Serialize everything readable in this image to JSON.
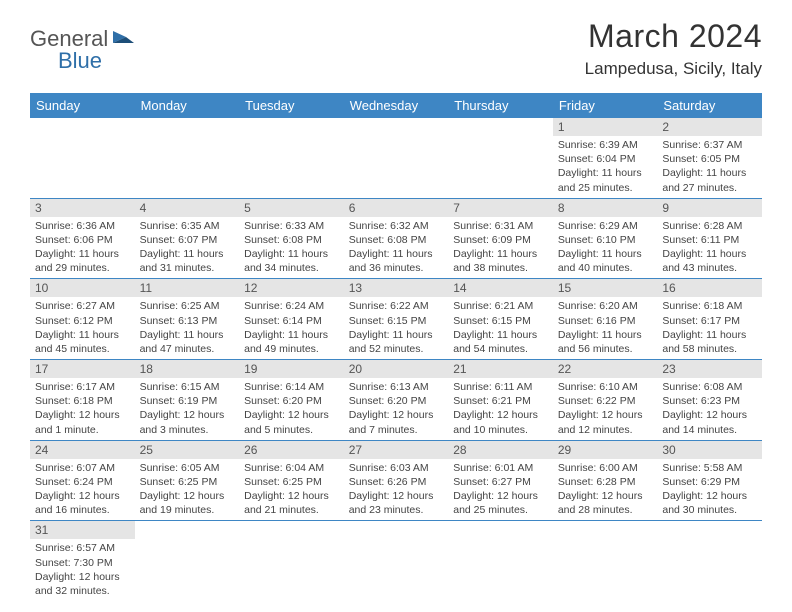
{
  "logo": {
    "word1": "General",
    "word2": "Blue"
  },
  "title": "March 2024",
  "location": "Lampedusa, Sicily, Italy",
  "colors": {
    "header_bg": "#3e86c4",
    "header_text": "#ffffff",
    "daynum_bg": "#e5e5e5",
    "row_border": "#3e86c4",
    "logo_blue": "#2f6fa8"
  },
  "weekdays": [
    "Sunday",
    "Monday",
    "Tuesday",
    "Wednesday",
    "Thursday",
    "Friday",
    "Saturday"
  ],
  "weeks": [
    [
      null,
      null,
      null,
      null,
      null,
      {
        "n": "1",
        "sr": "6:39 AM",
        "ss": "6:04 PM",
        "dl": "11 hours and 25 minutes."
      },
      {
        "n": "2",
        "sr": "6:37 AM",
        "ss": "6:05 PM",
        "dl": "11 hours and 27 minutes."
      }
    ],
    [
      {
        "n": "3",
        "sr": "6:36 AM",
        "ss": "6:06 PM",
        "dl": "11 hours and 29 minutes."
      },
      {
        "n": "4",
        "sr": "6:35 AM",
        "ss": "6:07 PM",
        "dl": "11 hours and 31 minutes."
      },
      {
        "n": "5",
        "sr": "6:33 AM",
        "ss": "6:08 PM",
        "dl": "11 hours and 34 minutes."
      },
      {
        "n": "6",
        "sr": "6:32 AM",
        "ss": "6:08 PM",
        "dl": "11 hours and 36 minutes."
      },
      {
        "n": "7",
        "sr": "6:31 AM",
        "ss": "6:09 PM",
        "dl": "11 hours and 38 minutes."
      },
      {
        "n": "8",
        "sr": "6:29 AM",
        "ss": "6:10 PM",
        "dl": "11 hours and 40 minutes."
      },
      {
        "n": "9",
        "sr": "6:28 AM",
        "ss": "6:11 PM",
        "dl": "11 hours and 43 minutes."
      }
    ],
    [
      {
        "n": "10",
        "sr": "6:27 AM",
        "ss": "6:12 PM",
        "dl": "11 hours and 45 minutes."
      },
      {
        "n": "11",
        "sr": "6:25 AM",
        "ss": "6:13 PM",
        "dl": "11 hours and 47 minutes."
      },
      {
        "n": "12",
        "sr": "6:24 AM",
        "ss": "6:14 PM",
        "dl": "11 hours and 49 minutes."
      },
      {
        "n": "13",
        "sr": "6:22 AM",
        "ss": "6:15 PM",
        "dl": "11 hours and 52 minutes."
      },
      {
        "n": "14",
        "sr": "6:21 AM",
        "ss": "6:15 PM",
        "dl": "11 hours and 54 minutes."
      },
      {
        "n": "15",
        "sr": "6:20 AM",
        "ss": "6:16 PM",
        "dl": "11 hours and 56 minutes."
      },
      {
        "n": "16",
        "sr": "6:18 AM",
        "ss": "6:17 PM",
        "dl": "11 hours and 58 minutes."
      }
    ],
    [
      {
        "n": "17",
        "sr": "6:17 AM",
        "ss": "6:18 PM",
        "dl": "12 hours and 1 minute."
      },
      {
        "n": "18",
        "sr": "6:15 AM",
        "ss": "6:19 PM",
        "dl": "12 hours and 3 minutes."
      },
      {
        "n": "19",
        "sr": "6:14 AM",
        "ss": "6:20 PM",
        "dl": "12 hours and 5 minutes."
      },
      {
        "n": "20",
        "sr": "6:13 AM",
        "ss": "6:20 PM",
        "dl": "12 hours and 7 minutes."
      },
      {
        "n": "21",
        "sr": "6:11 AM",
        "ss": "6:21 PM",
        "dl": "12 hours and 10 minutes."
      },
      {
        "n": "22",
        "sr": "6:10 AM",
        "ss": "6:22 PM",
        "dl": "12 hours and 12 minutes."
      },
      {
        "n": "23",
        "sr": "6:08 AM",
        "ss": "6:23 PM",
        "dl": "12 hours and 14 minutes."
      }
    ],
    [
      {
        "n": "24",
        "sr": "6:07 AM",
        "ss": "6:24 PM",
        "dl": "12 hours and 16 minutes."
      },
      {
        "n": "25",
        "sr": "6:05 AM",
        "ss": "6:25 PM",
        "dl": "12 hours and 19 minutes."
      },
      {
        "n": "26",
        "sr": "6:04 AM",
        "ss": "6:25 PM",
        "dl": "12 hours and 21 minutes."
      },
      {
        "n": "27",
        "sr": "6:03 AM",
        "ss": "6:26 PM",
        "dl": "12 hours and 23 minutes."
      },
      {
        "n": "28",
        "sr": "6:01 AM",
        "ss": "6:27 PM",
        "dl": "12 hours and 25 minutes."
      },
      {
        "n": "29",
        "sr": "6:00 AM",
        "ss": "6:28 PM",
        "dl": "12 hours and 28 minutes."
      },
      {
        "n": "30",
        "sr": "5:58 AM",
        "ss": "6:29 PM",
        "dl": "12 hours and 30 minutes."
      }
    ],
    [
      {
        "n": "31",
        "sr": "6:57 AM",
        "ss": "7:30 PM",
        "dl": "12 hours and 32 minutes."
      },
      null,
      null,
      null,
      null,
      null,
      null
    ]
  ],
  "labels": {
    "sunrise": "Sunrise:",
    "sunset": "Sunset:",
    "daylight": "Daylight:"
  }
}
